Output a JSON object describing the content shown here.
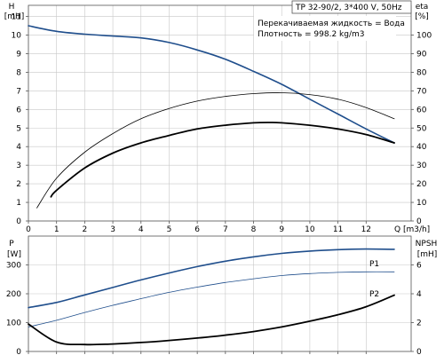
{
  "chart_data": [
    {
      "type": "line",
      "title": "TP 32-90/2, 3*400 V, 50Hz",
      "annotations": [
        "Перекачиваемая жидкость = Вода",
        "Плотность = 998.2 kg/m3"
      ],
      "xlabel": "Q [m3/h]",
      "ylabel_left": [
        "H",
        "[mН]"
      ],
      "ylabel_right": [
        "eta",
        "[%]"
      ],
      "xlim": [
        0,
        13.6
      ],
      "ylim_left": [
        0,
        11.6
      ],
      "ylim_right": [
        0,
        116
      ],
      "x_ticks": [
        0,
        1,
        2,
        3,
        4,
        5,
        6,
        7,
        8,
        9,
        10,
        11,
        12
      ],
      "x_tick_labels": [
        "0",
        "1",
        "2",
        "3",
        "4",
        "5",
        "6",
        "7",
        "8",
        "9",
        "10",
        "11",
        "12"
      ],
      "y_ticks_left": [
        0,
        1,
        2,
        3,
        4,
        5,
        6,
        7,
        8,
        9,
        10,
        11
      ],
      "y_tick_labels_left": [
        "0",
        "1",
        "2",
        "3",
        "4",
        "5",
        "6",
        "7",
        "8",
        "9",
        "10",
        "11"
      ],
      "y_ticks_right": [
        0,
        10,
        20,
        30,
        40,
        50,
        60,
        70,
        80,
        90,
        100
      ],
      "y_tick_labels_right": [
        "0",
        "10",
        "20",
        "30",
        "40",
        "50",
        "60",
        "70",
        "80",
        "90",
        "100"
      ],
      "grid": true,
      "series": [
        {
          "name": "",
          "axis": "left",
          "color": "#1f4e8c",
          "width": 1.6,
          "x": [
            0,
            1,
            2,
            3,
            4,
            5,
            6,
            7,
            8,
            9,
            10,
            11,
            12,
            13
          ],
          "y": [
            10.5,
            10.2,
            10.05,
            9.95,
            9.85,
            9.6,
            9.2,
            8.7,
            8.05,
            7.35,
            6.55,
            5.75,
            4.95,
            4.2
          ]
        },
        {
          "name": "",
          "axis": "right",
          "color": "#000000",
          "width": 0.8,
          "x": [
            0.3,
            1,
            2,
            3,
            4,
            5,
            6,
            7,
            8,
            9,
            10,
            11,
            12,
            13
          ],
          "y": [
            7,
            23,
            37,
            47,
            55,
            60.5,
            64.5,
            67,
            68.5,
            69,
            68,
            65.5,
            61,
            55
          ]
        },
        {
          "name": "",
          "axis": "left",
          "color": "#000000",
          "width": 1.8,
          "x": [
            0.8,
            1,
            2,
            3,
            4,
            5,
            6,
            7,
            8,
            8.6,
            9,
            10,
            11,
            12,
            13
          ],
          "y": [
            1.3,
            1.65,
            2.85,
            3.65,
            4.2,
            4.6,
            4.95,
            5.15,
            5.28,
            5.3,
            5.28,
            5.15,
            4.95,
            4.65,
            4.2
          ]
        }
      ]
    },
    {
      "type": "line",
      "xlim": [
        0,
        13.6
      ],
      "ylabel_left": [
        "P",
        "[W]"
      ],
      "ylabel_right": [
        "NPSH",
        "[mН]"
      ],
      "ylim_left": [
        0,
        400
      ],
      "ylim_right": [
        0,
        8
      ],
      "y_ticks_left": [
        0,
        100,
        200,
        300
      ],
      "y_tick_labels_left": [
        "0",
        "100",
        "200",
        "300"
      ],
      "y_ticks_right": [
        0,
        2,
        4,
        6
      ],
      "y_tick_labels_right": [
        "0",
        "2",
        "4",
        "6"
      ],
      "grid": true,
      "series": [
        {
          "name": "P1",
          "axis": "left",
          "color": "#1f4e8c",
          "width": 1.6,
          "x": [
            0,
            1,
            2,
            3,
            4,
            5,
            6,
            7,
            8,
            9,
            10,
            11,
            12,
            13
          ],
          "y": [
            152,
            170,
            196,
            222,
            248,
            272,
            294,
            313,
            328,
            340,
            348,
            353,
            355,
            354
          ]
        },
        {
          "name": "P2",
          "axis": "left",
          "color": "#1f4e8c",
          "width": 0.8,
          "x": [
            0,
            1,
            2,
            3,
            4,
            5,
            6,
            7,
            8,
            9,
            10,
            11,
            12,
            13
          ],
          "y": [
            85,
            108,
            135,
            160,
            183,
            205,
            223,
            239,
            252,
            263,
            270,
            274,
            276,
            276
          ]
        },
        {
          "name": "",
          "axis": "right",
          "color": "#000000",
          "width": 1.8,
          "x": [
            0,
            1,
            2,
            3,
            4,
            5,
            6,
            7,
            8,
            9,
            10,
            11,
            12,
            13
          ],
          "y": [
            1.9,
            0.65,
            0.48,
            0.52,
            0.62,
            0.76,
            0.93,
            1.13,
            1.38,
            1.7,
            2.1,
            2.55,
            3.1,
            3.9
          ]
        }
      ]
    }
  ]
}
